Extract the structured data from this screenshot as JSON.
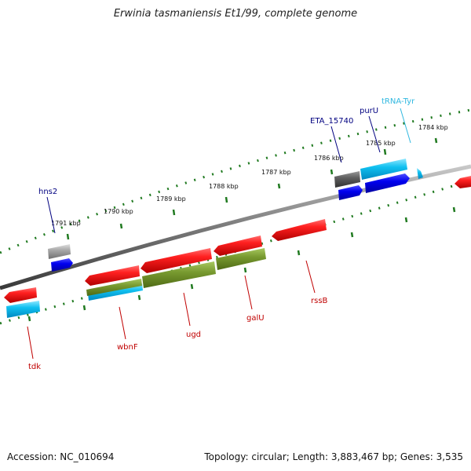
{
  "title": "Erwinia tasmaniensis Et1/99, complete genome",
  "footer": {
    "accession": "Accession: NC_010694",
    "topology": "Topology: circular; Length: 3,883,467 bp; Genes: 3,535"
  },
  "ticks": {
    "t1784": "1784 kbp",
    "t1785": "1785 kbp",
    "t1786": "1786 kbp",
    "t1787": "1787 kbp",
    "t1788": "1788 kbp",
    "t1789": "1789 kbp",
    "t1790": "1790 kbp",
    "t1791": "1791 kbp"
  },
  "genes": {
    "tRNA_Tyr": "tRNA-Tyr",
    "purU": "purU",
    "ETA_15740": "ETA_15740",
    "hns2": "hns2",
    "tdk": "tdk",
    "wbnF": "wbnF",
    "ugd": "ugd",
    "galU": "galU",
    "rssB": "rssB"
  },
  "colors": {
    "forward_red": "#e00000",
    "cds_blue": "#0000e0",
    "cyan": "#00b4e0",
    "olive": "#6a8c1e",
    "grey": "#9a9a9a",
    "dark_grey": "#555555",
    "tick_green": "#207a20",
    "label_blue": "#000080",
    "label_red": "#c00000",
    "label_cyan": "#30b8e0"
  }
}
